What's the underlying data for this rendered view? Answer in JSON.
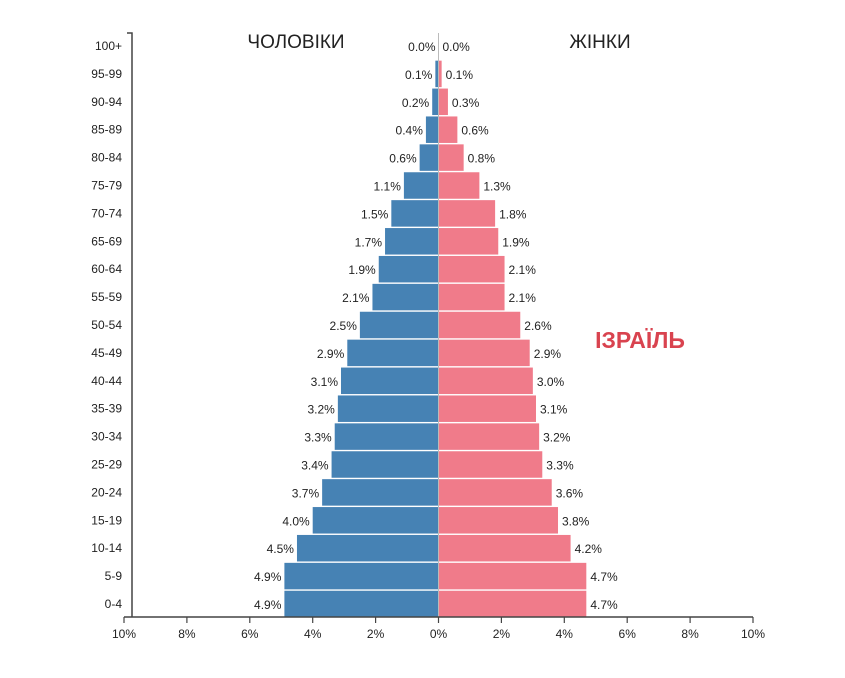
{
  "chart_data": {
    "type": "bar",
    "orientation": "horizontal-pyramid",
    "title": "ІЗРАЇЛЬ",
    "categories": [
      "100+",
      "95-99",
      "90-94",
      "85-89",
      "80-84",
      "75-79",
      "70-74",
      "65-69",
      "60-64",
      "55-59",
      "50-54",
      "45-49",
      "40-44",
      "35-39",
      "30-34",
      "25-29",
      "20-24",
      "15-19",
      "10-14",
      "5-9",
      "0-4"
    ],
    "series": [
      {
        "name": "ЧОЛОВІКИ",
        "side": "left",
        "color": "#4682b4",
        "values": [
          0.0,
          0.1,
          0.2,
          0.4,
          0.6,
          1.1,
          1.5,
          1.7,
          1.9,
          2.1,
          2.5,
          2.9,
          3.1,
          3.2,
          3.3,
          3.4,
          3.7,
          4.0,
          4.5,
          4.9,
          4.9
        ]
      },
      {
        "name": "ЖІНКИ",
        "side": "right",
        "color": "#f07b8a",
        "values": [
          0.0,
          0.1,
          0.3,
          0.6,
          0.8,
          1.3,
          1.8,
          1.9,
          2.1,
          2.1,
          2.6,
          2.9,
          3.0,
          3.1,
          3.2,
          3.3,
          3.6,
          3.8,
          4.2,
          4.7,
          4.7
        ]
      }
    ],
    "xticks": [
      "10%",
      "8%",
      "6%",
      "4%",
      "2%",
      "0%",
      "2%",
      "4%",
      "6%",
      "8%",
      "10%"
    ],
    "xlim": [
      -10,
      10
    ],
    "unit": "%",
    "title_color": "#d9434f",
    "grid": false
  }
}
